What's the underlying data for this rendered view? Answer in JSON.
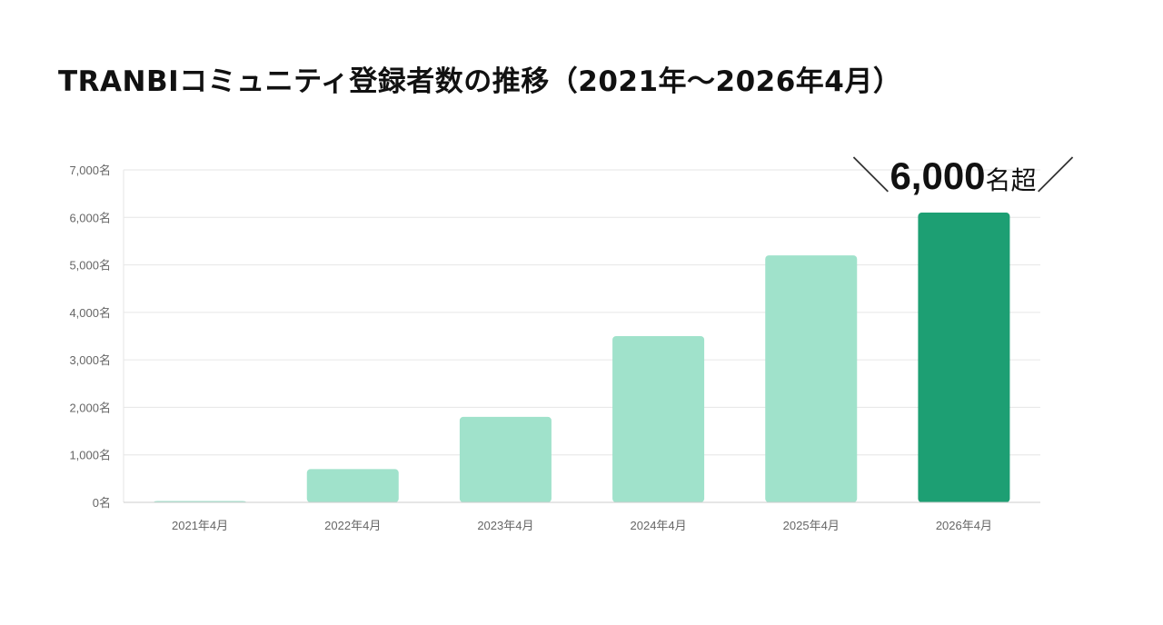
{
  "page": {
    "title": "TRANBIコミュニティ登録者数の推移（2021年〜2026年4月）"
  },
  "callout": {
    "left_mark": "＼",
    "number": "6,000",
    "suffix": "名超",
    "right_mark": "／"
  },
  "colors": {
    "bar": "#a0e2cb",
    "bar_highlight": "#1d9f73",
    "grid": "#e6e6e6",
    "axis": "#cccccc",
    "tick_text": "#666666"
  },
  "chart_data": {
    "type": "bar",
    "categories": [
      "2021年4月",
      "2022年4月",
      "2023年4月",
      "2024年4月",
      "2025年4月",
      "2026年4月"
    ],
    "values": [
      20,
      700,
      1800,
      3500,
      5200,
      6100
    ],
    "highlight_index": 5,
    "ylim": [
      0,
      7000
    ],
    "yticks": [
      0,
      1000,
      2000,
      3000,
      4000,
      5000,
      6000,
      7000
    ],
    "ytick_labels": [
      "0名",
      "1,000名",
      "2,000名",
      "3,000名",
      "4,000名",
      "5,000名",
      "6,000名",
      "7,000名"
    ],
    "grid": true
  }
}
